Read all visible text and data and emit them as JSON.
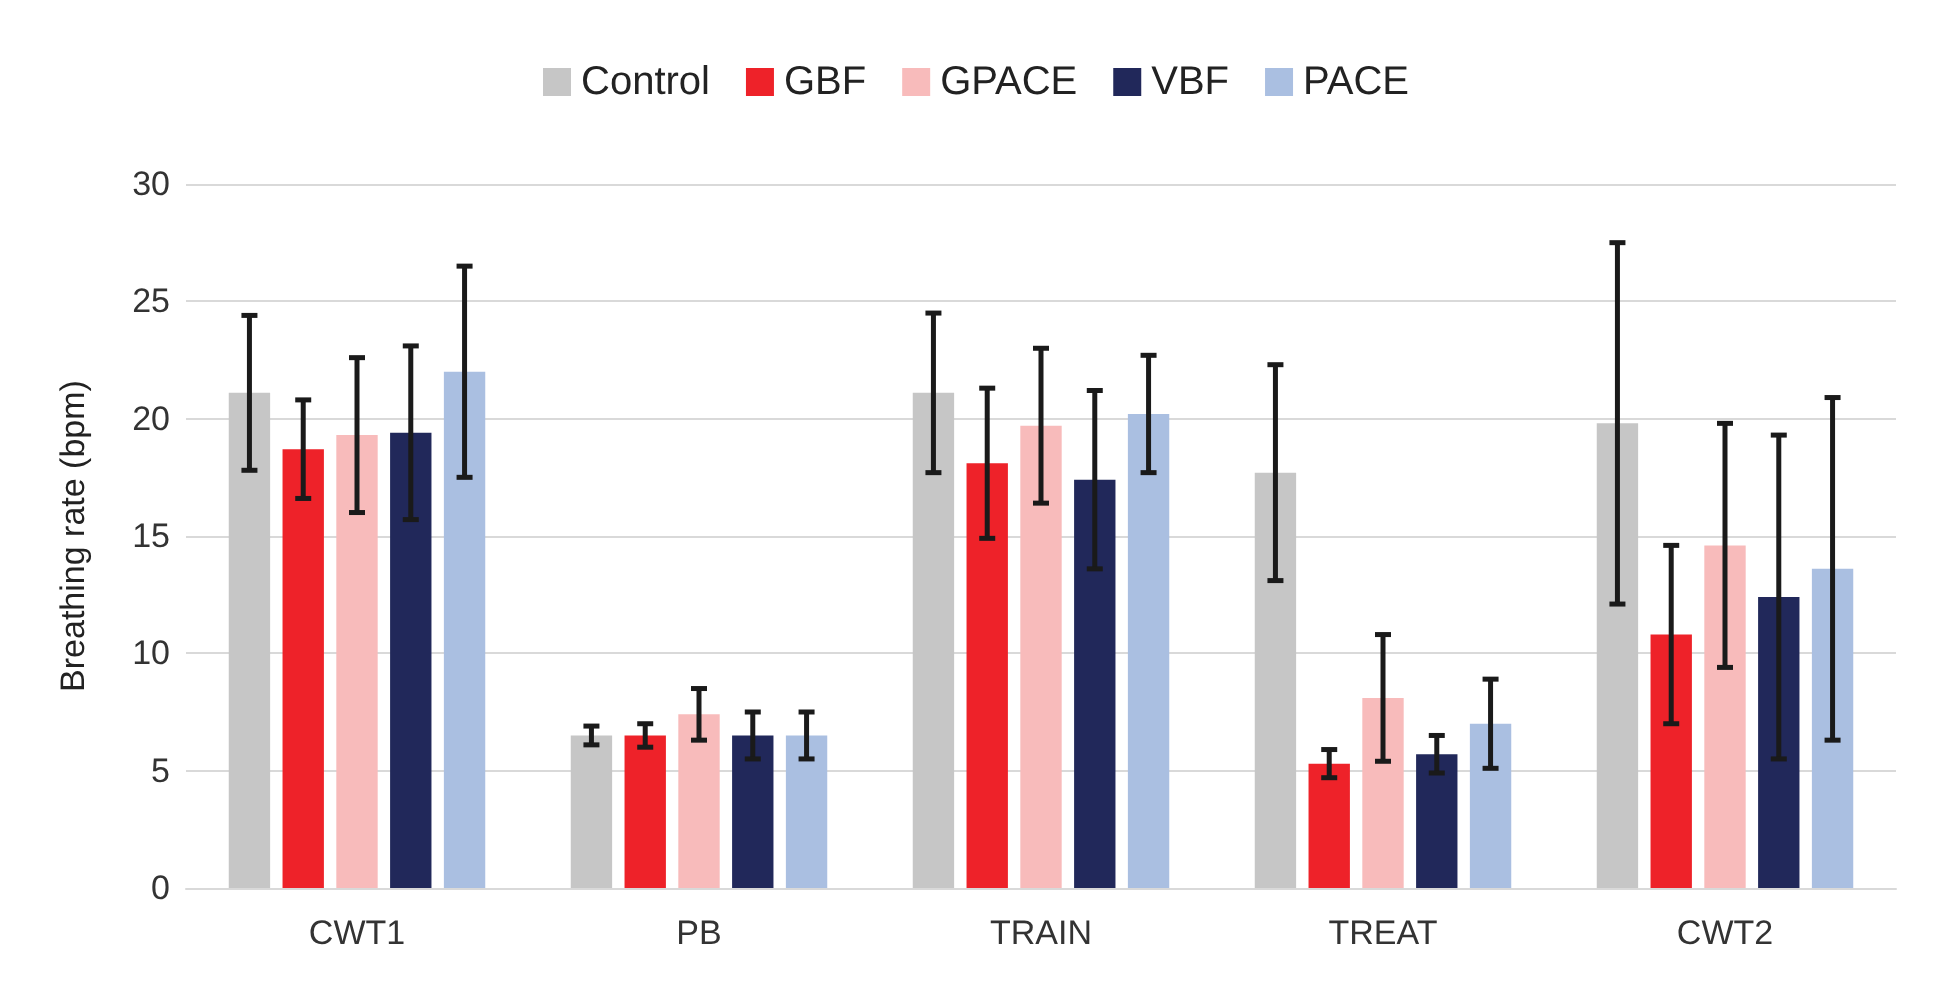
{
  "chart_data": {
    "type": "bar",
    "ylabel": "Breathing rate (bpm)",
    "categories": [
      "CWT1",
      "PB",
      "TRAIN",
      "TREAT",
      "CWT2"
    ],
    "series": [
      {
        "name": "Control",
        "color": "#c6c6c6",
        "values": [
          21.1,
          6.5,
          21.1,
          17.7,
          19.8
        ],
        "errors": [
          3.3,
          0.4,
          3.4,
          4.6,
          7.7
        ]
      },
      {
        "name": "GBF",
        "color": "#ee2229",
        "values": [
          18.7,
          6.5,
          18.1,
          5.3,
          10.8
        ],
        "errors": [
          2.1,
          0.5,
          3.2,
          0.6,
          3.8
        ]
      },
      {
        "name": "GPACE",
        "color": "#f8bbbb",
        "values": [
          19.3,
          7.4,
          19.7,
          8.1,
          14.6
        ],
        "errors": [
          3.3,
          1.1,
          3.3,
          2.7,
          5.2
        ]
      },
      {
        "name": "VBF",
        "color": "#21285a",
        "values": [
          19.4,
          6.5,
          17.4,
          5.7,
          12.4
        ],
        "errors": [
          3.7,
          1.0,
          3.8,
          0.8,
          6.9
        ]
      },
      {
        "name": "PACE",
        "color": "#aabfe1",
        "values": [
          22.0,
          6.5,
          20.2,
          7.0,
          13.6
        ],
        "errors": [
          4.5,
          1.0,
          2.5,
          1.9,
          7.3
        ]
      }
    ],
    "ylim": [
      0,
      30
    ],
    "yticks": [
      0,
      5,
      10,
      15,
      20,
      25,
      30
    ],
    "grid": "y",
    "legend": "top"
  }
}
